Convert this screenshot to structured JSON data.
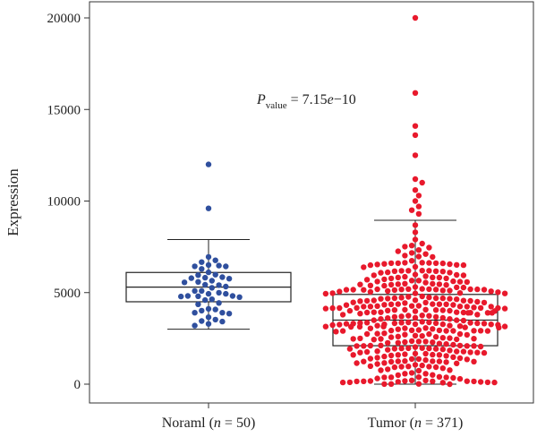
{
  "chart_data": {
    "type": "box-swarm",
    "ylabel": "Expression",
    "ylim": [
      0,
      20000
    ],
    "yticks": [
      "0",
      "5000",
      "10000",
      "15000",
      "20000"
    ],
    "categories": [
      {
        "label": "Noraml (",
        "n_symbol": "n",
        "n_text": " = 50)"
      },
      {
        "label": "Tumor (",
        "n_symbol": "n",
        "n_text": " = 371)"
      }
    ],
    "annotation": {
      "p_symbol": "P",
      "p_subscript": "value",
      "p_text": " =  7.15",
      "p_e": "e",
      "p_exp": "−10"
    },
    "boxes": [
      {
        "q1": 4500,
        "median": 5300,
        "q3": 6100,
        "whisker_low": 3000,
        "whisker_high": 7900,
        "n": 50,
        "color": "#2f4f9e"
      },
      {
        "q1": 2100,
        "median": 3500,
        "q3": 4900,
        "whisker_low": 0,
        "whisker_high": 8950,
        "n": 371,
        "color": "#e8192c"
      }
    ],
    "outliers": [
      {
        "group": 0,
        "values": [
          9600,
          12000
        ]
      },
      {
        "group": 1,
        "values": [
          9300,
          9500,
          9700,
          10000,
          10300,
          10600,
          11000,
          11200,
          12500,
          13600,
          14100,
          15900,
          20000
        ]
      }
    ],
    "grid": false,
    "legend": "none"
  }
}
